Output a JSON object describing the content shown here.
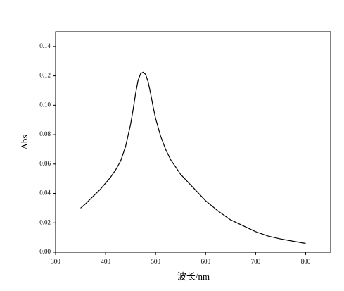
{
  "chart_data": {
    "type": "line",
    "x_label": "波长/nm",
    "y_label": "Abs",
    "x": [
      350,
      360,
      375,
      390,
      400,
      410,
      420,
      430,
      440,
      450,
      455,
      460,
      465,
      470,
      475,
      480,
      485,
      490,
      495,
      500,
      510,
      520,
      530,
      540,
      550,
      575,
      600,
      625,
      650,
      675,
      700,
      725,
      750,
      775,
      800
    ],
    "y": [
      0.03,
      0.033,
      0.038,
      0.043,
      0.047,
      0.051,
      0.056,
      0.062,
      0.072,
      0.087,
      0.097,
      0.108,
      0.117,
      0.1215,
      0.1225,
      0.121,
      0.116,
      0.108,
      0.099,
      0.091,
      0.079,
      0.07,
      0.063,
      0.058,
      0.053,
      0.044,
      0.035,
      0.028,
      0.022,
      0.018,
      0.014,
      0.011,
      0.009,
      0.0075,
      0.006
    ],
    "color": "#000000",
    "xlim": [
      300,
      850
    ],
    "ylim": [
      0,
      0.15
    ],
    "xticks": [
      300,
      400,
      500,
      600,
      700,
      800
    ],
    "yticks": [
      {
        "value": 0,
        "label": "0.00"
      },
      {
        "value": 0.02,
        "label": "0.02"
      },
      {
        "value": 0.04,
        "label": "0.04"
      },
      {
        "value": 0.06,
        "label": "0.06"
      },
      {
        "value": 0.08,
        "label": "0.08"
      },
      {
        "value": 0.1,
        "label": "0.10"
      },
      {
        "value": 0.12,
        "label": "0.12"
      },
      {
        "value": 0.14,
        "label": "0.14"
      }
    ]
  }
}
